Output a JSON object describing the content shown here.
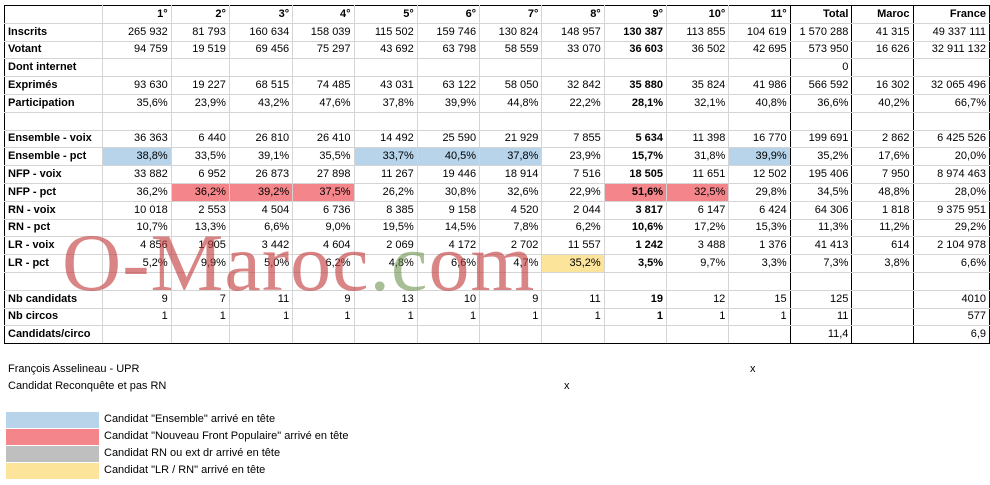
{
  "colors": {
    "ensemble": "#b7d4ea",
    "nfp": "#f4858a",
    "rn": "#bfbfbf",
    "lr": "#fde49b"
  },
  "table": {
    "columns": [
      "1°",
      "2°",
      "3°",
      "4°",
      "5°",
      "6°",
      "7°",
      "8°",
      "9°",
      "10°",
      "11°",
      "Total",
      "Maroc",
      "France"
    ],
    "rows": [
      {
        "label": "Inscrits",
        "cells": [
          "265 932",
          "81 793",
          "160 634",
          "158 039",
          "115 502",
          "159 746",
          "130 824",
          "148 957",
          "130 387",
          "113 855",
          "104 619",
          "1 570 288",
          "41 315",
          "49 337 111"
        ]
      },
      {
        "label": "Votant",
        "cells": [
          "94 759",
          "19 519",
          "69 456",
          "75 297",
          "43 692",
          "63 798",
          "58 559",
          "33 070",
          "36 603",
          "36 502",
          "42 695",
          "573 950",
          "16 626",
          "32 911 132"
        ]
      },
      {
        "label": "Dont internet",
        "cells": [
          "",
          "",
          "",
          "",
          "",
          "",
          "",
          "",
          "",
          "",
          "",
          "0",
          "",
          ""
        ]
      },
      {
        "label": "Exprimés",
        "cells": [
          "93 630",
          "19 227",
          "68 515",
          "74 485",
          "43 031",
          "63 122",
          "58 050",
          "32 842",
          "35 880",
          "35 824",
          "41 986",
          "566 592",
          "16 302",
          "32 065 496"
        ]
      },
      {
        "label": "Participation",
        "cells": [
          "35,6%",
          "23,9%",
          "43,2%",
          "47,6%",
          "37,8%",
          "39,9%",
          "44,8%",
          "22,2%",
          "28,1%",
          "32,1%",
          "40,8%",
          "36,6%",
          "40,2%",
          "66,7%"
        ]
      },
      {
        "label": "",
        "cells": [
          "",
          "",
          "",
          "",
          "",
          "",
          "",
          "",
          "",
          "",
          "",
          "",
          "",
          ""
        ]
      },
      {
        "label": "Ensemble - voix",
        "cells": [
          "36 363",
          "6 440",
          "26 810",
          "26 410",
          "14 492",
          "25 590",
          "21 929",
          "7 855",
          "5 634",
          "11 398",
          "16 770",
          "199 691",
          "2 862",
          "6 425 526"
        ]
      },
      {
        "label": "Ensemble - pct",
        "cells": [
          "38,8%",
          "33,5%",
          "39,1%",
          "35,5%",
          "33,7%",
          "40,5%",
          "37,8%",
          "23,9%",
          "15,7%",
          "31,8%",
          "39,9%",
          "35,2%",
          "17,6%",
          "20,0%"
        ]
      },
      {
        "label": "NFP - voix",
        "cells": [
          "33 882",
          "6 952",
          "26 873",
          "27 898",
          "11 267",
          "19 446",
          "18 914",
          "7 516",
          "18 505",
          "11 651",
          "12 502",
          "195 406",
          "7 950",
          "8 974 463"
        ]
      },
      {
        "label": "NFP - pct",
        "cells": [
          "36,2%",
          "36,2%",
          "39,2%",
          "37,5%",
          "26,2%",
          "30,8%",
          "32,6%",
          "22,9%",
          "51,6%",
          "32,5%",
          "29,8%",
          "34,5%",
          "48,8%",
          "28,0%"
        ]
      },
      {
        "label": "RN - voix",
        "cells": [
          "10 018",
          "2 553",
          "4 504",
          "6 736",
          "8 385",
          "9 158",
          "4 520",
          "2 044",
          "3 817",
          "6 147",
          "6 424",
          "64 306",
          "1 818",
          "9 375 951"
        ]
      },
      {
        "label": "RN - pct",
        "cells": [
          "10,7%",
          "13,3%",
          "6,6%",
          "9,0%",
          "19,5%",
          "14,5%",
          "7,8%",
          "6,2%",
          "10,6%",
          "17,2%",
          "15,3%",
          "11,3%",
          "11,2%",
          "29,2%"
        ]
      },
      {
        "label": "LR - voix",
        "cells": [
          "4 856",
          "1 905",
          "3 442",
          "4 604",
          "2 069",
          "4 172",
          "2 702",
          "11 557",
          "1 242",
          "3 488",
          "1 376",
          "41 413",
          "614",
          "2 104 978"
        ]
      },
      {
        "label": "LR - pct",
        "cells": [
          "5,2%",
          "9,9%",
          "5,0%",
          "6,2%",
          "4,8%",
          "6,6%",
          "4,7%",
          "35,2%",
          "3,5%",
          "9,7%",
          "3,3%",
          "7,3%",
          "3,8%",
          "6,6%"
        ]
      },
      {
        "label": "",
        "cells": [
          "",
          "",
          "",
          "",
          "",
          "",
          "",
          "",
          "",
          "",
          "",
          "",
          "",
          ""
        ]
      },
      {
        "label": "Nb candidats",
        "cells": [
          "9",
          "7",
          "11",
          "9",
          "13",
          "10",
          "9",
          "11",
          "19",
          "12",
          "15",
          "125",
          "",
          "4010"
        ]
      },
      {
        "label": "Nb circos",
        "cells": [
          "1",
          "1",
          "1",
          "1",
          "1",
          "1",
          "1",
          "1",
          "1",
          "1",
          "1",
          "11",
          "",
          "577"
        ]
      },
      {
        "label": "Candidats/circo",
        "cells": [
          "",
          "",
          "",
          "",
          "",
          "",
          "",
          "",
          "",
          "",
          "",
          "11,4",
          "",
          "6,9"
        ]
      }
    ]
  },
  "watermark": {
    "part1": "O-Maroc",
    "part2": ".c",
    "part3": "om"
  },
  "notes": {
    "upr_label": "François Asselineau - UPR",
    "upr_mark": "x",
    "reconquete_label": "Candidat Reconquête et pas RN",
    "reconquete_mark": "x"
  },
  "legend": [
    {
      "label": "Candidat \"Ensemble\" arrivé en tête",
      "color": "#b7d4ea"
    },
    {
      "label": "Candidat \"Nouveau Front Populaire\" arrivé en tête",
      "color": "#f4858a"
    },
    {
      "label": "Candidat RN ou ext dr arrivé en tête",
      "color": "#bfbfbf"
    },
    {
      "label": "Candidat \"LR / RN\" arrivé en tête",
      "color": "#fde49b"
    }
  ]
}
